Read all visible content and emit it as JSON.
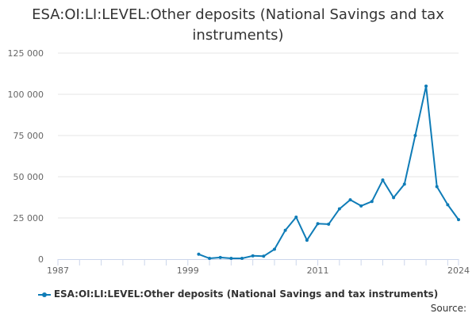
{
  "chart_data": {
    "type": "line",
    "title": "ESA:OI:LI:LEVEL:Other deposits (National Savings and tax instruments)",
    "xlabel": "",
    "ylabel": "",
    "x_ticks": [
      "1987",
      "1999",
      "2011",
      "2024"
    ],
    "y_ticks": [
      "0",
      "25 000",
      "50 000",
      "75 000",
      "100 000",
      "125 000"
    ],
    "xlim": [
      1987,
      2024
    ],
    "ylim": [
      0,
      125000
    ],
    "grid": true,
    "legend_position": "bottom",
    "series": [
      {
        "name": "ESA:OI:LI:LEVEL:Other deposits (National Savings and tax instruments)",
        "color": "#0f7cb7",
        "x": [
          2000,
          2001,
          2002,
          2003,
          2004,
          2005,
          2006,
          2007,
          2008,
          2009,
          2010,
          2011,
          2012,
          2013,
          2014,
          2015,
          2016,
          2017,
          2018,
          2019,
          2020,
          2021,
          2022,
          2023,
          2024
        ],
        "y": [
          3000,
          500,
          1000,
          500,
          500,
          2000,
          1800,
          6000,
          17500,
          25500,
          11500,
          21500,
          21200,
          30500,
          36000,
          32300,
          35000,
          48000,
          37300,
          45500,
          75000,
          105000,
          44000,
          33000,
          24000
        ]
      }
    ]
  },
  "source_label": "Source:"
}
